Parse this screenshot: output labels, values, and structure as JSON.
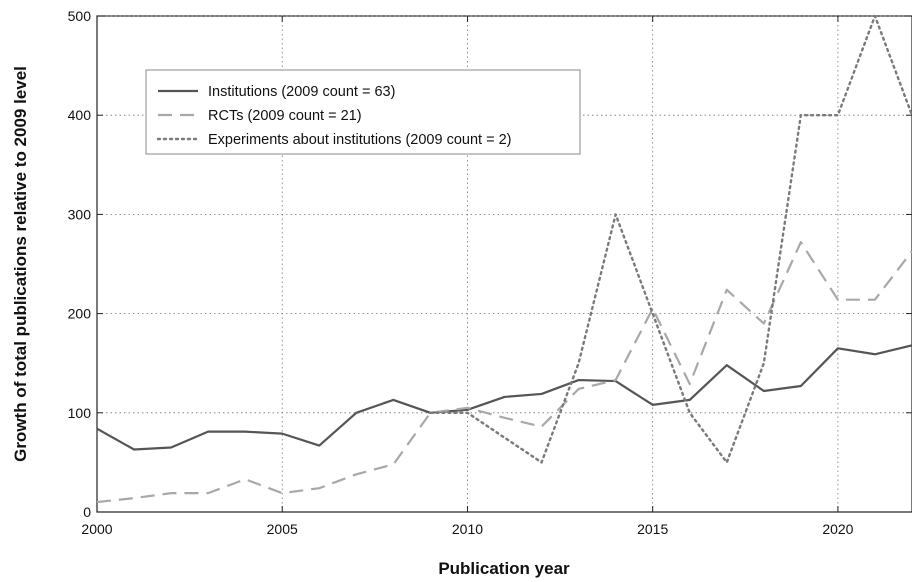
{
  "chart_data": {
    "type": "line",
    "title": "",
    "xlabel": "Publication year",
    "ylabel": "Growth of total publications relative to 2009 level",
    "xlim": [
      2000,
      2022
    ],
    "ylim": [
      0,
      500
    ],
    "xticks": [
      2000,
      2005,
      2010,
      2015,
      2020
    ],
    "yticks": [
      0,
      100,
      200,
      300,
      400,
      500
    ],
    "x": [
      2000,
      2001,
      2002,
      2003,
      2004,
      2005,
      2006,
      2007,
      2008,
      2009,
      2010,
      2011,
      2012,
      2013,
      2014,
      2015,
      2016,
      2017,
      2018,
      2019,
      2020,
      2021,
      2022
    ],
    "grid": true,
    "legend_position": "upper-left",
    "series": [
      {
        "name": "Institutions (2009 count = 63)",
        "style": "solid",
        "color": "#555555",
        "values": [
          84,
          63,
          65,
          81,
          81,
          79,
          67,
          100,
          113,
          100,
          103,
          116,
          119,
          133,
          132,
          108,
          113,
          148,
          122,
          127,
          165,
          159,
          168
        ]
      },
      {
        "name": "RCTs (2009 count = 21)",
        "style": "dashed",
        "color": "#a8a8a8",
        "values": [
          10,
          14,
          19,
          19,
          33,
          19,
          24,
          38,
          48,
          100,
          105,
          95,
          86,
          124,
          133,
          205,
          129,
          224,
          190,
          272,
          214,
          214,
          263
        ]
      },
      {
        "name": "Experiments about institutions (2009 count = 2)",
        "style": "dotted",
        "color": "#7a7a7a",
        "values": [
          null,
          null,
          null,
          null,
          null,
          null,
          null,
          null,
          null,
          100,
          100,
          75,
          50,
          150,
          300,
          200,
          100,
          50,
          150,
          400,
          400,
          500,
          400
        ]
      }
    ]
  }
}
